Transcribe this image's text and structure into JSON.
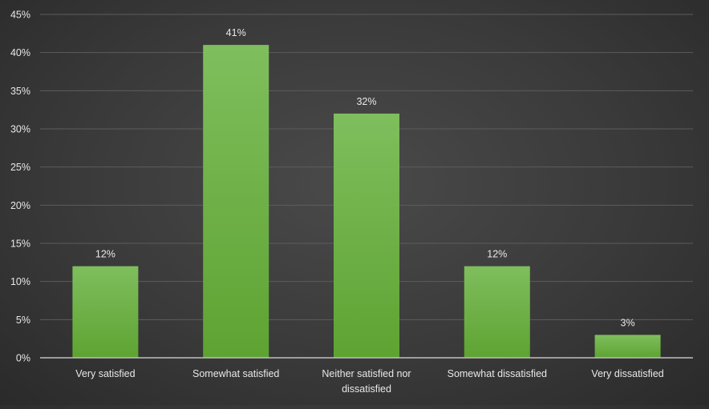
{
  "chart_data": {
    "type": "bar",
    "categories": [
      "Very satisfied",
      "Somewhat satisfied",
      "Neither satisfied nor dissatisfied",
      "Somewhat dissatisfied",
      "Very dissatisfied"
    ],
    "category_label_lines": [
      [
        "Very satisfied"
      ],
      [
        "Somewhat satisfied"
      ],
      [
        "Neither satisfied nor",
        "dissatisfied"
      ],
      [
        "Somewhat dissatisfied"
      ],
      [
        "Very dissatisfied"
      ]
    ],
    "values": [
      12,
      41,
      32,
      12,
      3
    ],
    "data_labels": [
      "12%",
      "41%",
      "32%",
      "12%",
      "3%"
    ],
    "ylim": [
      0,
      45
    ],
    "yticks": [
      0,
      5,
      10,
      15,
      20,
      25,
      30,
      35,
      40,
      45
    ],
    "ytick_labels": [
      "0%",
      "5%",
      "10%",
      "15%",
      "20%",
      "25%",
      "30%",
      "35%",
      "40%",
      "45%"
    ],
    "title": "",
    "xlabel": "",
    "ylabel": "",
    "grid": true,
    "legend": "none",
    "colors": {
      "bar_top": "#7fbe5d",
      "bar_bottom": "#5ea332",
      "gridline": "#5c5c5c",
      "axis": "#bfbfbf",
      "text": "#e8e8e8"
    }
  }
}
